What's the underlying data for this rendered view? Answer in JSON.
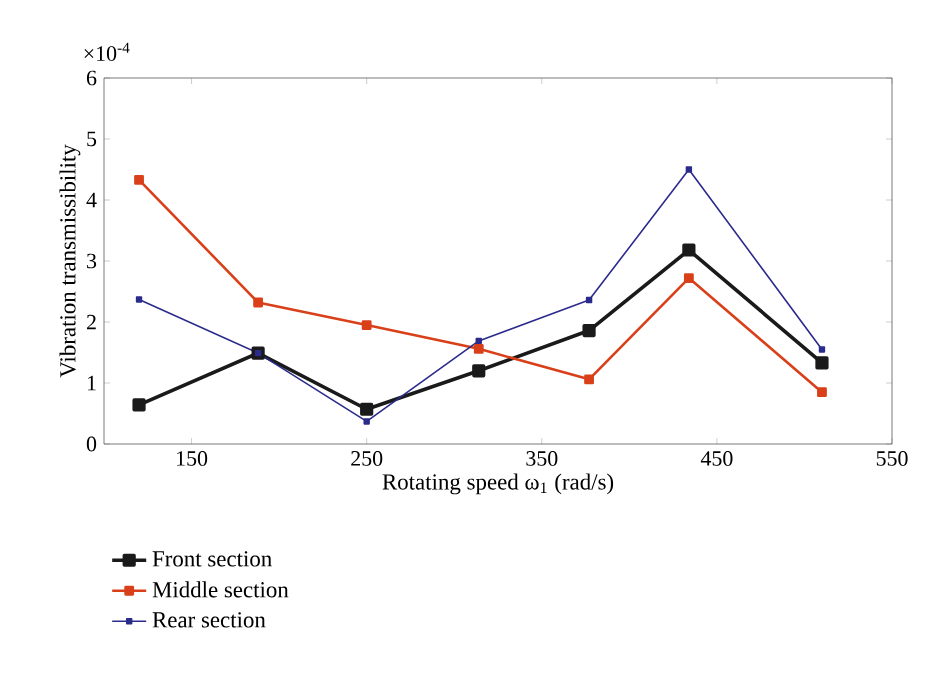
{
  "chart_data": {
    "type": "line",
    "xlabel": "Rotating speed ω$_{1}$ (rad/s)",
    "ylabel": "Vibration transmissibility",
    "annotations": [
      "×10$^{-4}$"
    ],
    "x": [
      120,
      188,
      250,
      314,
      377,
      434,
      510
    ],
    "series": [
      {
        "name": "Front section",
        "color": "#1a1a1a",
        "values": [
          0.64,
          1.49,
          0.57,
          1.2,
          1.86,
          3.18,
          1.33
        ]
      },
      {
        "name": "Middle section",
        "color": "#d9401a",
        "values": [
          4.33,
          2.32,
          1.95,
          1.56,
          1.06,
          2.72,
          0.85
        ]
      },
      {
        "name": "Rear section",
        "color": "#2b2b8c",
        "values": [
          2.37,
          1.49,
          0.37,
          1.69,
          2.36,
          4.5,
          1.55
        ]
      }
    ],
    "xlim": [
      100,
      550
    ],
    "xticks": [
      150,
      250,
      350,
      450,
      550
    ],
    "ylim": [
      0,
      6
    ],
    "yticks": [
      0,
      1,
      2,
      3,
      4,
      5,
      6
    ],
    "grid": false,
    "legend": "bottom left",
    "marker": "square",
    "line_style": "solid"
  }
}
